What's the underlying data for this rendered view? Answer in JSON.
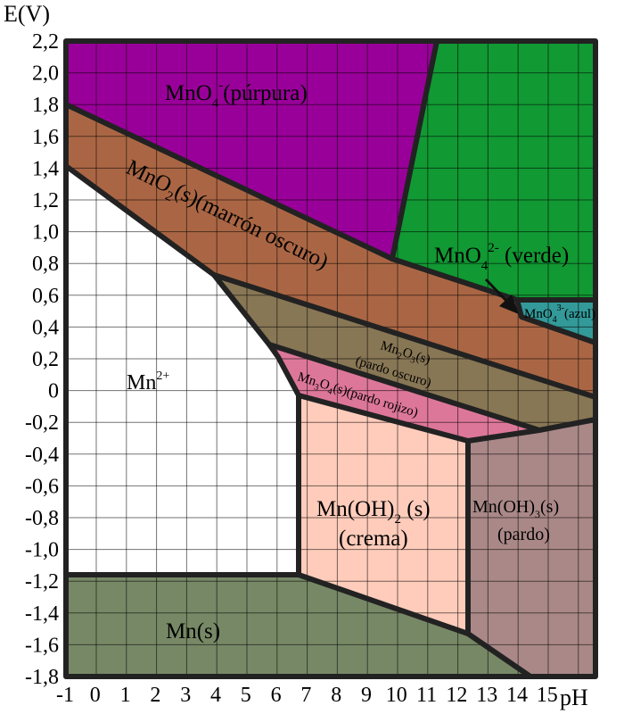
{
  "axes": {
    "y_title": "E(V)",
    "x_title": "pH",
    "y_ticks": [
      "2,2",
      "2,0",
      "1,8",
      "1,6",
      "1,4",
      "1,2",
      "1,0",
      "0,8",
      "0,6",
      "0,4",
      "0,2",
      "0",
      "-0,2",
      "-0,4",
      "-0,6",
      "-0,8",
      "-1,0",
      "-1,2",
      "-1,4",
      "-1,6",
      "-1,8"
    ],
    "x_ticks": [
      "-1",
      "0",
      "1",
      "2",
      "3",
      "4",
      "5",
      "6",
      "7",
      "8",
      "9",
      "10",
      "11",
      "12",
      "13",
      "14",
      "15"
    ]
  },
  "regions": {
    "mno4": {
      "formula": "MnO",
      "sub": "4",
      "sup": "-",
      "rest": "(púrpura)",
      "color": "#990099"
    },
    "mno4_2": {
      "formula": "MnO",
      "sub": "4",
      "sup": "2-",
      "rest": " (verde)",
      "color": "#119933"
    },
    "mno4_3": {
      "formula": "MnO",
      "sub": "4",
      "sup": "3-",
      "rest": "(azul)",
      "color": "#339999"
    },
    "mno2": {
      "a": "MnO",
      "sub": "2",
      "b": "(s)(marrón oscuro)",
      "color": "#aa6644"
    },
    "mn2o3": {
      "a": "Mn",
      "sub1": "2",
      "b": "O",
      "sub2": "3",
      "c": "(s)",
      "line2": "(pardo oscuro)",
      "color": "#887755"
    },
    "mn3o4": {
      "a": "Mn",
      "sub1": "3",
      "b": "O",
      "sub2": "4",
      "c": "(s)(pardo rojizo)",
      "color": "#dd7799"
    },
    "mn2": {
      "formula": "Mn",
      "sup": "2+",
      "color": "#ffffff"
    },
    "mnoh2": {
      "a": "Mn(OH)",
      "sub": "2",
      "b": " (s)",
      "line2": "(crema)",
      "color": "#ffccbb"
    },
    "mnoh3": {
      "a": "Mn(OH)",
      "sub": "3",
      "b": "(s)",
      "line2": "(pardo)",
      "color": "#aa8888"
    },
    "mn": {
      "formula": "Mn(s)",
      "color": "#778866"
    }
  }
}
